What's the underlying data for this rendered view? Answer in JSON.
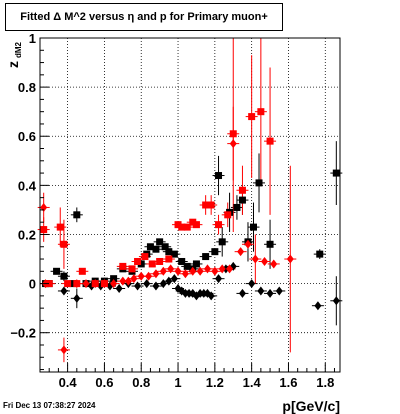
{
  "header": {
    "title": "Fitted Δ M^2 versus η and p for Primary muon+"
  },
  "footer": {
    "timestamp": "Fri Dec 13 07:38:27 2024"
  },
  "chart_data": {
    "type": "scatter",
    "title": "Fitted Δ M^2 versus η and p for Primary muon+",
    "xlabel": "p[GeV/c]",
    "ylabel": "z",
    "ylabel_sub": "dM2",
    "xlim": [
      0.25,
      1.88
    ],
    "ylim": [
      -0.36,
      1.0
    ],
    "x_ticks": [
      0.4,
      0.6,
      0.8,
      1.0,
      1.2,
      1.4,
      1.6,
      1.8
    ],
    "x_tick_labels": [
      "0.4",
      "0.6",
      "0.8",
      "1",
      "1.2",
      "1.4",
      "1.6",
      "1.8"
    ],
    "y_ticks": [
      -0.2,
      0,
      0.2,
      0.4,
      0.6,
      0.8,
      1.0
    ],
    "y_tick_labels": [
      "−0.2",
      "0",
      "0.2",
      "0.4",
      "0.6",
      "0.8",
      "1"
    ],
    "grid": true,
    "series": [
      {
        "color": "#000000",
        "marker": "square",
        "points": [
          {
            "x": 0.28,
            "y": 0.0
          },
          {
            "x": 0.3,
            "y": 0.0
          },
          {
            "x": 0.34,
            "y": 0.05
          },
          {
            "x": 0.38,
            "y": 0.03,
            "e": 0.02
          },
          {
            "x": 0.45,
            "y": 0.28,
            "e": 0.03
          },
          {
            "x": 0.43,
            "y": 0.0
          },
          {
            "x": 0.5,
            "y": 0.0
          },
          {
            "x": 0.55,
            "y": 0.01
          },
          {
            "x": 0.6,
            "y": 0.01
          },
          {
            "x": 0.65,
            "y": 0.02
          },
          {
            "x": 0.7,
            "y": 0.06
          },
          {
            "x": 0.75,
            "y": 0.05
          },
          {
            "x": 0.8,
            "y": 0.08
          },
          {
            "x": 0.83,
            "y": 0.12
          },
          {
            "x": 0.85,
            "y": 0.15
          },
          {
            "x": 0.88,
            "y": 0.14
          },
          {
            "x": 0.9,
            "y": 0.17
          },
          {
            "x": 0.93,
            "y": 0.15
          },
          {
            "x": 0.95,
            "y": 0.13
          },
          {
            "x": 0.98,
            "y": 0.12
          },
          {
            "x": 1.02,
            "y": 0.09
          },
          {
            "x": 1.05,
            "y": 0.07
          },
          {
            "x": 1.08,
            "y": 0.06
          },
          {
            "x": 1.1,
            "y": 0.08
          },
          {
            "x": 1.15,
            "y": 0.11
          },
          {
            "x": 1.2,
            "y": 0.13
          },
          {
            "x": 1.22,
            "y": 0.44,
            "e": 0.08
          },
          {
            "x": 1.24,
            "y": 0.17,
            "e": 0.06
          },
          {
            "x": 1.28,
            "y": 0.29,
            "e": 0.08
          },
          {
            "x": 1.32,
            "y": 0.31,
            "e": 0.05
          },
          {
            "x": 1.35,
            "y": 0.34,
            "e": 0.06
          },
          {
            "x": 1.38,
            "y": 0.17,
            "e": 0.08
          },
          {
            "x": 1.41,
            "y": 0.23,
            "e": 0.1
          },
          {
            "x": 1.44,
            "y": 0.41,
            "e": 0.12
          },
          {
            "x": 1.5,
            "y": 0.16,
            "e": 0.1
          },
          {
            "x": 1.77,
            "y": 0.12,
            "e": 0.02
          },
          {
            "x": 1.86,
            "y": 0.45,
            "e": 0.13
          }
        ]
      },
      {
        "color": "#000000",
        "marker": "diamond",
        "points": [
          {
            "x": 0.38,
            "y": -0.03
          },
          {
            "x": 0.45,
            "y": -0.06,
            "e": 0.04
          },
          {
            "x": 0.53,
            "y": -0.01
          },
          {
            "x": 0.58,
            "y": -0.01
          },
          {
            "x": 0.63,
            "y": -0.01
          },
          {
            "x": 0.68,
            "y": -0.02
          },
          {
            "x": 0.73,
            "y": 0.0
          },
          {
            "x": 0.78,
            "y": -0.01
          },
          {
            "x": 0.83,
            "y": 0.0
          },
          {
            "x": 0.88,
            "y": -0.01
          },
          {
            "x": 0.92,
            "y": 0.0
          },
          {
            "x": 0.95,
            "y": 0.01
          },
          {
            "x": 0.98,
            "y": 0.02
          },
          {
            "x": 1.0,
            "y": -0.02
          },
          {
            "x": 1.02,
            "y": -0.03
          },
          {
            "x": 1.04,
            "y": -0.04
          },
          {
            "x": 1.06,
            "y": -0.04
          },
          {
            "x": 1.08,
            "y": -0.04
          },
          {
            "x": 1.1,
            "y": -0.05
          },
          {
            "x": 1.12,
            "y": -0.04
          },
          {
            "x": 1.14,
            "y": -0.04
          },
          {
            "x": 1.16,
            "y": -0.04
          },
          {
            "x": 1.18,
            "y": -0.05
          },
          {
            "x": 1.22,
            "y": 0.02
          },
          {
            "x": 1.26,
            "y": 0.06
          },
          {
            "x": 1.3,
            "y": 0.07
          },
          {
            "x": 1.35,
            "y": -0.04
          },
          {
            "x": 1.4,
            "y": 0.0
          },
          {
            "x": 1.45,
            "y": -0.03
          },
          {
            "x": 1.5,
            "y": -0.04
          },
          {
            "x": 1.55,
            "y": -0.03
          },
          {
            "x": 1.76,
            "y": -0.09
          },
          {
            "x": 1.86,
            "y": -0.07,
            "e": 0.1
          }
        ]
      },
      {
        "color": "#ff0000",
        "marker": "square",
        "points": [
          {
            "x": 0.27,
            "y": 0.22,
            "e": 0.05
          },
          {
            "x": 0.3,
            "y": 0.0
          },
          {
            "x": 0.36,
            "y": 0.23,
            "e": 0.08
          },
          {
            "x": 0.38,
            "y": 0.16,
            "e": 0.1
          },
          {
            "x": 0.4,
            "y": 0.0
          },
          {
            "x": 0.45,
            "y": 0.0
          },
          {
            "x": 0.48,
            "y": 0.05
          },
          {
            "x": 0.55,
            "y": 0.0
          },
          {
            "x": 0.6,
            "y": 0.0
          },
          {
            "x": 0.7,
            "y": 0.07
          },
          {
            "x": 0.75,
            "y": 0.06
          },
          {
            "x": 0.78,
            "y": 0.09
          },
          {
            "x": 0.82,
            "y": 0.11
          },
          {
            "x": 0.86,
            "y": 0.08
          },
          {
            "x": 0.9,
            "y": 0.09
          },
          {
            "x": 0.95,
            "y": 0.1
          },
          {
            "x": 1.0,
            "y": 0.24
          },
          {
            "x": 1.02,
            "y": 0.23
          },
          {
            "x": 1.05,
            "y": 0.23
          },
          {
            "x": 1.08,
            "y": 0.25
          },
          {
            "x": 1.1,
            "y": 0.24
          },
          {
            "x": 1.15,
            "y": 0.32,
            "e": 0.04
          },
          {
            "x": 1.18,
            "y": 0.32,
            "e": 0.04
          },
          {
            "x": 1.22,
            "y": 0.24,
            "e": 0.04
          },
          {
            "x": 1.27,
            "y": 0.28,
            "e": 0.05
          },
          {
            "x": 1.3,
            "y": 0.61,
            "e": 0.4
          },
          {
            "x": 1.35,
            "y": 0.38,
            "e": 0.1
          },
          {
            "x": 1.4,
            "y": 0.68,
            "e": 0.25
          },
          {
            "x": 1.45,
            "y": 0.7,
            "e": 0.3
          },
          {
            "x": 1.5,
            "y": 0.58,
            "e": 0.3
          }
        ]
      },
      {
        "color": "#ff0000",
        "marker": "diamond",
        "points": [
          {
            "x": 0.27,
            "y": 0.31,
            "e": 0.06
          },
          {
            "x": 0.28,
            "y": 0.0
          },
          {
            "x": 0.38,
            "y": -0.27,
            "e": 0.05
          },
          {
            "x": 0.45,
            "y": 0.0
          },
          {
            "x": 0.5,
            "y": 0.0
          },
          {
            "x": 0.55,
            "y": 0.0
          },
          {
            "x": 0.6,
            "y": 0.0
          },
          {
            "x": 0.65,
            "y": 0.0
          },
          {
            "x": 0.7,
            "y": 0.01
          },
          {
            "x": 0.73,
            "y": 0.01
          },
          {
            "x": 0.76,
            "y": 0.02
          },
          {
            "x": 0.8,
            "y": 0.03
          },
          {
            "x": 0.84,
            "y": 0.03
          },
          {
            "x": 0.88,
            "y": 0.04
          },
          {
            "x": 0.92,
            "y": 0.05
          },
          {
            "x": 0.96,
            "y": 0.06
          },
          {
            "x": 1.0,
            "y": 0.05
          },
          {
            "x": 1.04,
            "y": 0.04
          },
          {
            "x": 1.08,
            "y": 0.05
          },
          {
            "x": 1.12,
            "y": 0.05
          },
          {
            "x": 1.16,
            "y": 0.06
          },
          {
            "x": 1.2,
            "y": 0.05
          },
          {
            "x": 1.24,
            "y": 0.06
          },
          {
            "x": 1.28,
            "y": 0.06
          },
          {
            "x": 1.3,
            "y": 0.57,
            "e": 0.15
          },
          {
            "x": 1.34,
            "y": 0.13
          },
          {
            "x": 1.38,
            "y": 0.16
          },
          {
            "x": 1.42,
            "y": 0.1,
            "e": 0.1
          },
          {
            "x": 1.47,
            "y": 0.09
          },
          {
            "x": 1.52,
            "y": 0.08
          },
          {
            "x": 1.61,
            "y": 0.1,
            "e": 0.38
          }
        ]
      }
    ]
  }
}
